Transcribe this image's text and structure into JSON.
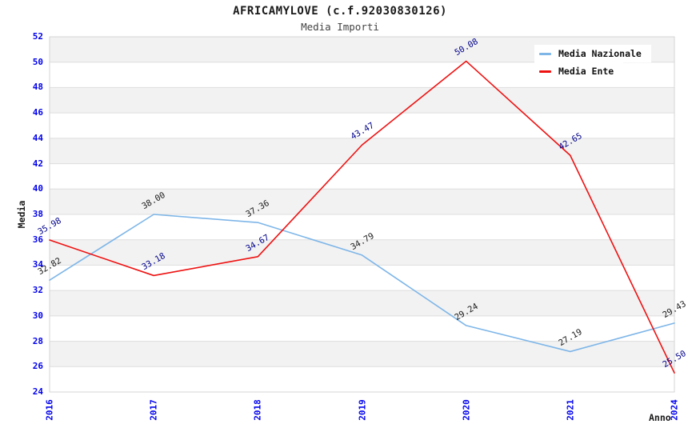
{
  "header": {
    "title": "AFRICAMYLOVE (c.f.92030830126)",
    "subtitle": "Media Importi"
  },
  "chart_data": {
    "type": "line",
    "title": "AFRICAMYLOVE (c.f.92030830126)",
    "subtitle": "Media Importi",
    "xlabel": "Anno",
    "ylabel": "Media",
    "categories": [
      "2016",
      "2017",
      "2018",
      "2019",
      "2020",
      "2021",
      "2024"
    ],
    "series": [
      {
        "name": "Media Nazionale",
        "values": [
          32.82,
          38.0,
          37.36,
          34.79,
          29.24,
          27.19,
          29.43
        ],
        "color": "#7EB6E8",
        "label_color": "#1a1a1a"
      },
      {
        "name": "Media Ente",
        "values": [
          35.98,
          33.18,
          34.67,
          43.47,
          50.08,
          42.65,
          25.5
        ],
        "color": "#EE1111",
        "label_color": "#00008B"
      }
    ],
    "ylim": [
      24,
      52
    ],
    "ytick_step": 2,
    "grid": "horizontal-bands",
    "legend_position": "top-right",
    "colors": {
      "band": "#F2F2F2",
      "gridline": "#DDDDDD",
      "plot_border": "#D4D4D4",
      "tick_label": "#0000EE",
      "axis_title": "#1a1a1a"
    }
  }
}
